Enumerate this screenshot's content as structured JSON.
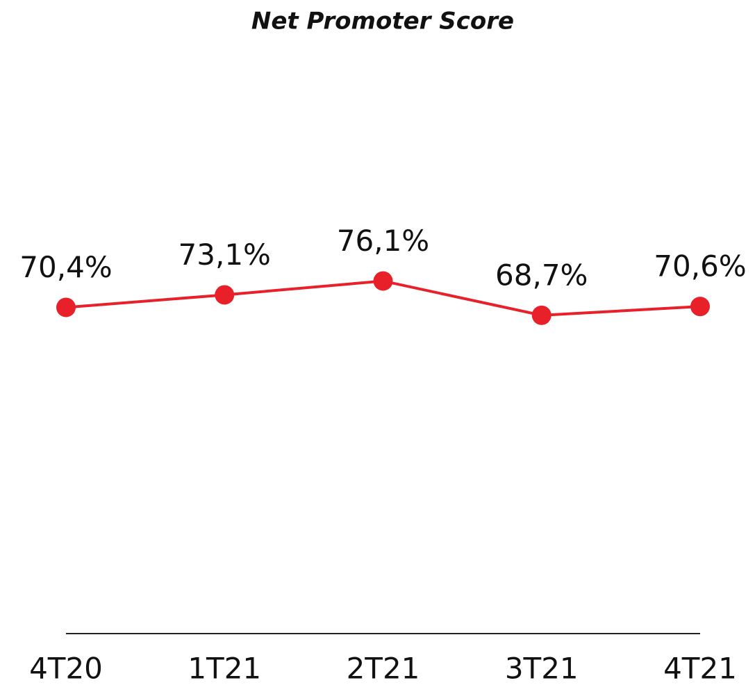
{
  "chart_data": {
    "type": "line",
    "title": "Net Promoter Score",
    "categories": [
      "4T20",
      "1T21",
      "2T21",
      "3T21",
      "4T21"
    ],
    "values": [
      70.4,
      73.1,
      76.1,
      68.7,
      70.6
    ],
    "value_labels": [
      "70,4%",
      "73,1%",
      "76,1%",
      "68,7%",
      "70,6%"
    ],
    "color": "#e8202a",
    "ylim": [
      0,
      130
    ]
  }
}
